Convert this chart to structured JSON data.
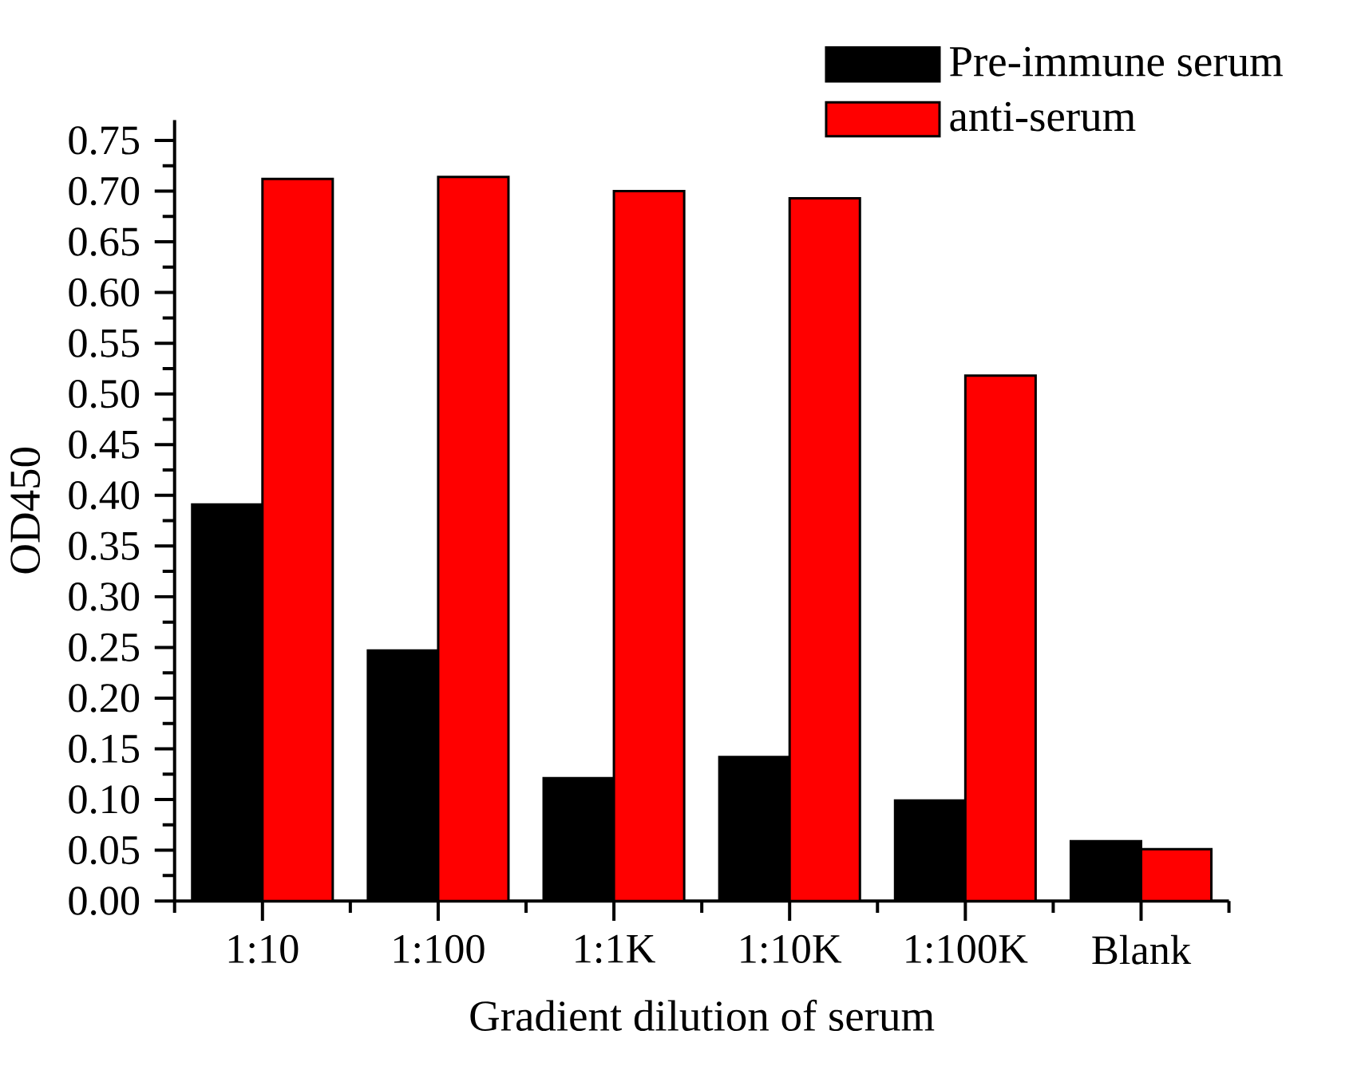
{
  "chart_data": {
    "type": "bar",
    "xlabel": "Gradient dilution of serum",
    "ylabel": "OD450",
    "categories": [
      "1:10",
      "1:100",
      "1:1K",
      "1:10K",
      "1:100K",
      "Blank"
    ],
    "series": [
      {
        "name": "Pre-immune serum",
        "color": "#000000",
        "values": [
          0.391,
          0.247,
          0.121,
          0.142,
          0.099,
          0.059
        ]
      },
      {
        "name": "anti-serum",
        "color": "#ff0000",
        "values": [
          0.712,
          0.714,
          0.7,
          0.693,
          0.518,
          0.051
        ]
      }
    ],
    "ylim": [
      0,
      0.77
    ],
    "yticks": [
      {
        "value": 0,
        "label": "0.00"
      },
      {
        "value": 0.05,
        "label": "0.05"
      },
      {
        "value": 0.1,
        "label": "0.10"
      },
      {
        "value": 0.15,
        "label": "0.15"
      },
      {
        "value": 0.2,
        "label": "0.20"
      },
      {
        "value": 0.25,
        "label": "0.25"
      },
      {
        "value": 0.3,
        "label": "0.30"
      },
      {
        "value": 0.35,
        "label": "0.35"
      },
      {
        "value": 0.4,
        "label": "0.40"
      },
      {
        "value": 0.45,
        "label": "0.45"
      },
      {
        "value": 0.5,
        "label": "0.50"
      },
      {
        "value": 0.55,
        "label": "0.55"
      },
      {
        "value": 0.6,
        "label": "0.60"
      },
      {
        "value": 0.65,
        "label": "0.65"
      },
      {
        "value": 0.7,
        "label": "0.70"
      },
      {
        "value": 0.75,
        "label": "0.75"
      }
    ],
    "grid": false,
    "legend": "top right"
  }
}
